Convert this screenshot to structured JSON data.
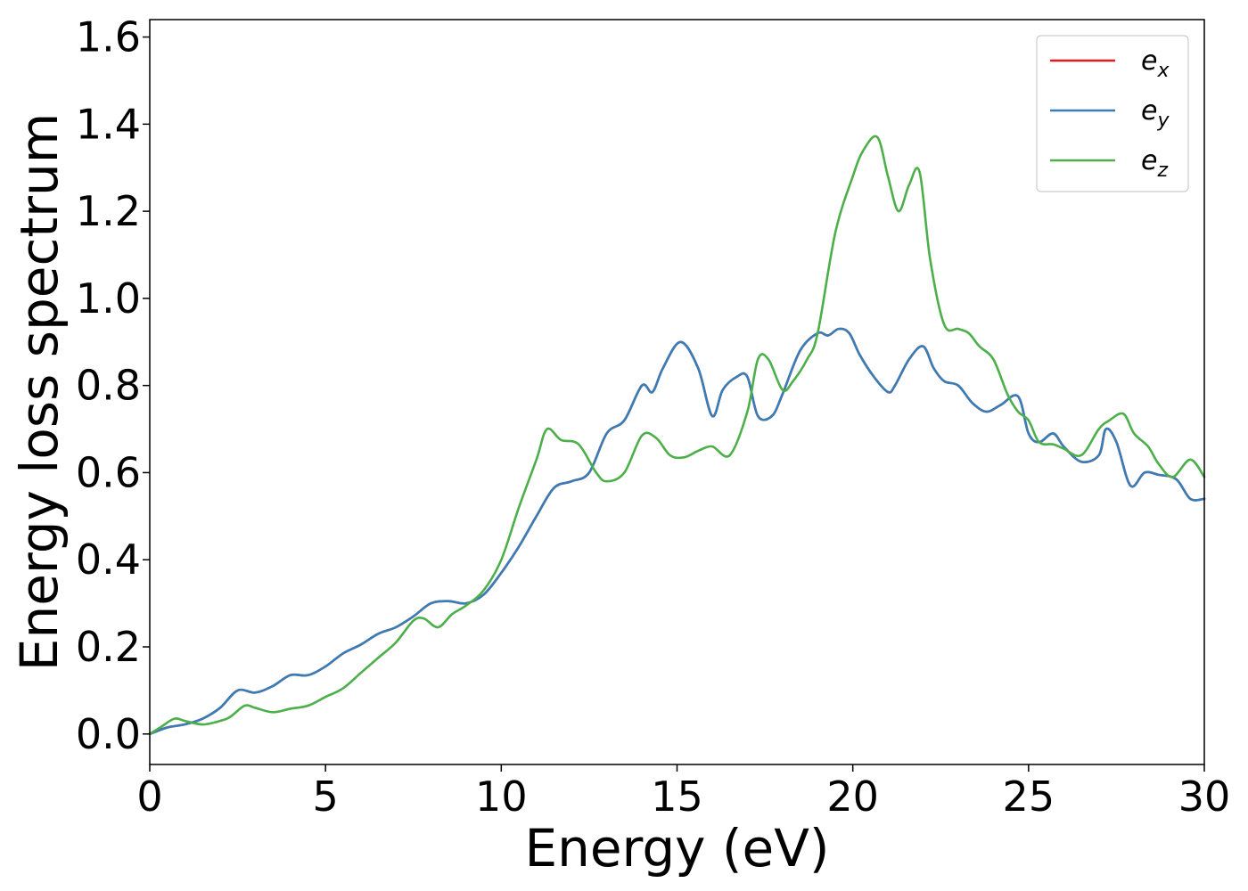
{
  "chart_data": {
    "type": "line",
    "title": "",
    "xlabel": "Energy (eV)",
    "ylabel": "Energy loss spectrum",
    "xlim": [
      0,
      30
    ],
    "ylim": [
      -0.07,
      1.64
    ],
    "xticks": [
      0,
      5,
      10,
      15,
      20,
      25,
      30
    ],
    "yticks": [
      0.0,
      0.2,
      0.4,
      0.6,
      0.8,
      1.0,
      1.2,
      1.4,
      1.6
    ],
    "xtick_labels": [
      "0",
      "5",
      "10",
      "15",
      "20",
      "25",
      "30"
    ],
    "ytick_labels": [
      "0.0",
      "0.2",
      "0.4",
      "0.6",
      "0.8",
      "1.0",
      "1.2",
      "1.4",
      "1.6"
    ],
    "grid": false,
    "legend_position": "top-right",
    "series": [
      {
        "name": "e_x",
        "legend_base": "e",
        "legend_sub": "x",
        "color": "#e41a1c",
        "x": [
          0,
          0.5,
          1.0,
          1.5,
          2.0,
          2.5,
          3.0,
          3.5,
          4.0,
          4.5,
          5.0,
          5.5,
          6.0,
          6.5,
          7.0,
          7.5,
          8.0,
          8.5,
          9.0,
          9.5,
          10.0,
          10.5,
          11.0,
          11.5,
          12.0,
          12.5,
          13.0,
          13.5,
          14.0,
          14.3,
          14.6,
          15.1,
          15.6,
          16.0,
          16.3,
          16.7,
          17.0,
          17.3,
          17.7,
          18.0,
          18.5,
          19.0,
          19.3,
          19.6,
          19.9,
          20.2,
          20.6,
          21.0,
          21.2,
          21.6,
          22.0,
          22.3,
          22.6,
          23.0,
          23.4,
          23.8,
          24.2,
          24.7,
          25.0,
          25.3,
          25.7,
          26.0,
          26.5,
          27.0,
          27.2,
          27.5,
          27.9,
          28.3,
          28.7,
          29.2,
          29.6,
          30.0
        ],
        "y": [
          0.0,
          0.015,
          0.022,
          0.035,
          0.06,
          0.1,
          0.095,
          0.11,
          0.135,
          0.135,
          0.155,
          0.185,
          0.205,
          0.23,
          0.245,
          0.27,
          0.3,
          0.305,
          0.3,
          0.32,
          0.37,
          0.43,
          0.5,
          0.565,
          0.58,
          0.6,
          0.69,
          0.72,
          0.8,
          0.785,
          0.84,
          0.9,
          0.84,
          0.73,
          0.79,
          0.82,
          0.82,
          0.73,
          0.73,
          0.78,
          0.88,
          0.92,
          0.915,
          0.93,
          0.92,
          0.87,
          0.82,
          0.785,
          0.8,
          0.86,
          0.89,
          0.84,
          0.81,
          0.8,
          0.76,
          0.74,
          0.755,
          0.775,
          0.69,
          0.67,
          0.69,
          0.66,
          0.625,
          0.64,
          0.7,
          0.67,
          0.57,
          0.6,
          0.595,
          0.585,
          0.54,
          0.54
        ]
      },
      {
        "name": "e_y",
        "legend_base": "e",
        "legend_sub": "y",
        "color": "#377eb8",
        "x": [
          0,
          0.5,
          1.0,
          1.5,
          2.0,
          2.5,
          3.0,
          3.5,
          4.0,
          4.5,
          5.0,
          5.5,
          6.0,
          6.5,
          7.0,
          7.5,
          8.0,
          8.5,
          9.0,
          9.5,
          10.0,
          10.5,
          11.0,
          11.5,
          12.0,
          12.5,
          13.0,
          13.5,
          14.0,
          14.3,
          14.6,
          15.1,
          15.6,
          16.0,
          16.3,
          16.7,
          17.0,
          17.3,
          17.7,
          18.0,
          18.5,
          19.0,
          19.3,
          19.6,
          19.9,
          20.2,
          20.6,
          21.0,
          21.2,
          21.6,
          22.0,
          22.3,
          22.6,
          23.0,
          23.4,
          23.8,
          24.2,
          24.7,
          25.0,
          25.3,
          25.7,
          26.0,
          26.5,
          27.0,
          27.2,
          27.5,
          27.9,
          28.3,
          28.7,
          29.2,
          29.6,
          30.0
        ],
        "y": [
          0.0,
          0.015,
          0.022,
          0.035,
          0.06,
          0.1,
          0.095,
          0.11,
          0.135,
          0.135,
          0.155,
          0.185,
          0.205,
          0.23,
          0.245,
          0.27,
          0.3,
          0.305,
          0.3,
          0.32,
          0.37,
          0.43,
          0.5,
          0.565,
          0.58,
          0.6,
          0.69,
          0.72,
          0.8,
          0.785,
          0.84,
          0.9,
          0.84,
          0.73,
          0.79,
          0.82,
          0.82,
          0.73,
          0.73,
          0.78,
          0.88,
          0.92,
          0.915,
          0.93,
          0.92,
          0.87,
          0.82,
          0.785,
          0.8,
          0.86,
          0.89,
          0.84,
          0.81,
          0.8,
          0.76,
          0.74,
          0.755,
          0.775,
          0.69,
          0.67,
          0.69,
          0.66,
          0.625,
          0.64,
          0.7,
          0.67,
          0.57,
          0.6,
          0.595,
          0.585,
          0.54,
          0.54
        ]
      },
      {
        "name": "e_z",
        "legend_base": "e",
        "legend_sub": "z",
        "color": "#4daf4a",
        "x": [
          0,
          0.3,
          0.7,
          1.0,
          1.5,
          2.0,
          2.3,
          2.7,
          3.0,
          3.5,
          4.0,
          4.5,
          5.0,
          5.5,
          6.0,
          6.5,
          7.0,
          7.5,
          7.8,
          8.2,
          8.6,
          9.0,
          9.5,
          10.0,
          10.5,
          11.0,
          11.3,
          11.7,
          12.2,
          12.7,
          13.0,
          13.5,
          14.0,
          14.4,
          14.8,
          15.2,
          15.6,
          16.0,
          16.5,
          17.0,
          17.3,
          17.6,
          18.0,
          18.3,
          18.7,
          19.0,
          19.5,
          20.0,
          20.3,
          20.7,
          21.0,
          21.3,
          21.6,
          21.9,
          22.2,
          22.6,
          23.0,
          23.3,
          23.6,
          24.0,
          24.4,
          24.7,
          25.0,
          25.3,
          25.7,
          26.0,
          26.5,
          27.0,
          27.3,
          27.7,
          28.0,
          28.4,
          28.7,
          29.1,
          29.6,
          30.0
        ],
        "y": [
          0.0,
          0.015,
          0.035,
          0.03,
          0.022,
          0.03,
          0.04,
          0.065,
          0.06,
          0.05,
          0.058,
          0.065,
          0.085,
          0.105,
          0.14,
          0.175,
          0.21,
          0.26,
          0.265,
          0.245,
          0.275,
          0.295,
          0.33,
          0.4,
          0.52,
          0.63,
          0.7,
          0.675,
          0.665,
          0.6,
          0.58,
          0.6,
          0.685,
          0.68,
          0.64,
          0.635,
          0.65,
          0.66,
          0.64,
          0.74,
          0.86,
          0.86,
          0.79,
          0.81,
          0.86,
          0.92,
          1.15,
          1.28,
          1.34,
          1.37,
          1.28,
          1.2,
          1.26,
          1.29,
          1.09,
          0.94,
          0.93,
          0.92,
          0.89,
          0.86,
          0.78,
          0.74,
          0.72,
          0.67,
          0.665,
          0.655,
          0.64,
          0.7,
          0.72,
          0.735,
          0.69,
          0.66,
          0.62,
          0.59,
          0.63,
          0.59
        ]
      }
    ]
  }
}
